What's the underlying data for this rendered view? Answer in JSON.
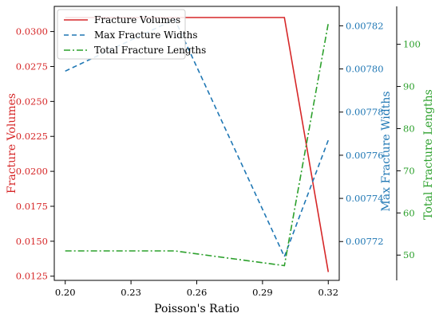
{
  "chart_data": {
    "type": "line",
    "xlabel": "Poisson's Ratio",
    "x": [
      0.2,
      0.25,
      0.3,
      0.32
    ],
    "x_ticks": [
      "0.20",
      "0.23",
      "0.26",
      "0.29",
      "0.32"
    ],
    "xlim": [
      0.195,
      0.325
    ],
    "axes": {
      "left": {
        "label": "Fracture Volumes",
        "color": "#d62728",
        "ylim": [
          0.0122,
          0.0318
        ],
        "ticks": [
          "0.0125",
          "0.0150",
          "0.0175",
          "0.0200",
          "0.0225",
          "0.0250",
          "0.0275",
          "0.0300"
        ]
      },
      "right1": {
        "label": "Max Fracture Widths",
        "color": "#1f77b4",
        "ylim": [
          0.007702,
          0.007829
        ],
        "ticks": [
          "0.00772",
          "0.00774",
          "0.00776",
          "0.00778",
          "0.00780",
          "0.00782"
        ]
      },
      "right2": {
        "label": "Total Fracture Lengths",
        "color": "#2ca02c",
        "ylim": [
          44,
          109
        ],
        "ticks": [
          "50",
          "60",
          "70",
          "80",
          "90",
          "100"
        ]
      }
    },
    "series": [
      {
        "name": "Fracture Volumes",
        "axis": "left",
        "style": "solid",
        "color": "#d62728",
        "values": [
          0.031,
          0.031,
          0.031,
          0.0128
        ]
      },
      {
        "name": "Max Fracture Widths",
        "axis": "right1",
        "style": "dashed",
        "color": "#1f77b4",
        "values": [
          0.007799,
          0.007823,
          0.007713,
          0.007767
        ]
      },
      {
        "name": "Total Fracture Lengths",
        "axis": "right2",
        "style": "dashdot",
        "color": "#2ca02c",
        "values": [
          51,
          51,
          47.5,
          105
        ]
      }
    ],
    "legend": {
      "placement": "top-left"
    },
    "grid": false
  }
}
